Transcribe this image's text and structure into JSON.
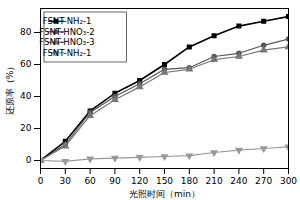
{
  "chart_data": {
    "type": "line",
    "x": [
      0,
      30,
      60,
      90,
      120,
      150,
      180,
      210,
      240,
      270,
      300
    ],
    "series": [
      {
        "name": "FSNT-NH₂-1",
        "color": "#000000",
        "marker": "square",
        "line_style": "solid",
        "values": [
          0,
          12,
          31,
          42,
          50,
          60,
          71,
          78,
          84,
          87,
          90
        ]
      },
      {
        "name": "FSNT-HNO₃-2",
        "color": "#555555",
        "marker": "circle",
        "line_style": "solid",
        "values": [
          0,
          10,
          30,
          40,
          48,
          57,
          58,
          65,
          67,
          72,
          76
        ]
      },
      {
        "name": "FSNT-HNO₃-3",
        "color": "#777777",
        "marker": "triangle_up",
        "line_style": "solid",
        "values": [
          0,
          9,
          28,
          38,
          46,
          55,
          57,
          63,
          65,
          69,
          71
        ]
      },
      {
        "name": "FSNT-NH₂-1",
        "color": "#999999",
        "marker": "triangle_down",
        "line_style": "solid",
        "values": [
          0,
          -0.5,
          1,
          1.5,
          2,
          2.5,
          3,
          5,
          6.5,
          7.5,
          8.5
        ]
      }
    ],
    "xlabel": "光照时间（min）",
    "ylabel": "还原率（%）",
    "xlim": [
      0,
      300
    ],
    "ylim": [
      -5,
      95
    ],
    "xticks": [
      0,
      30,
      60,
      90,
      120,
      150,
      180,
      210,
      240,
      270,
      300
    ],
    "yticks": [
      0,
      20,
      40,
      60,
      80
    ],
    "grid": false,
    "legend": "upper left"
  }
}
